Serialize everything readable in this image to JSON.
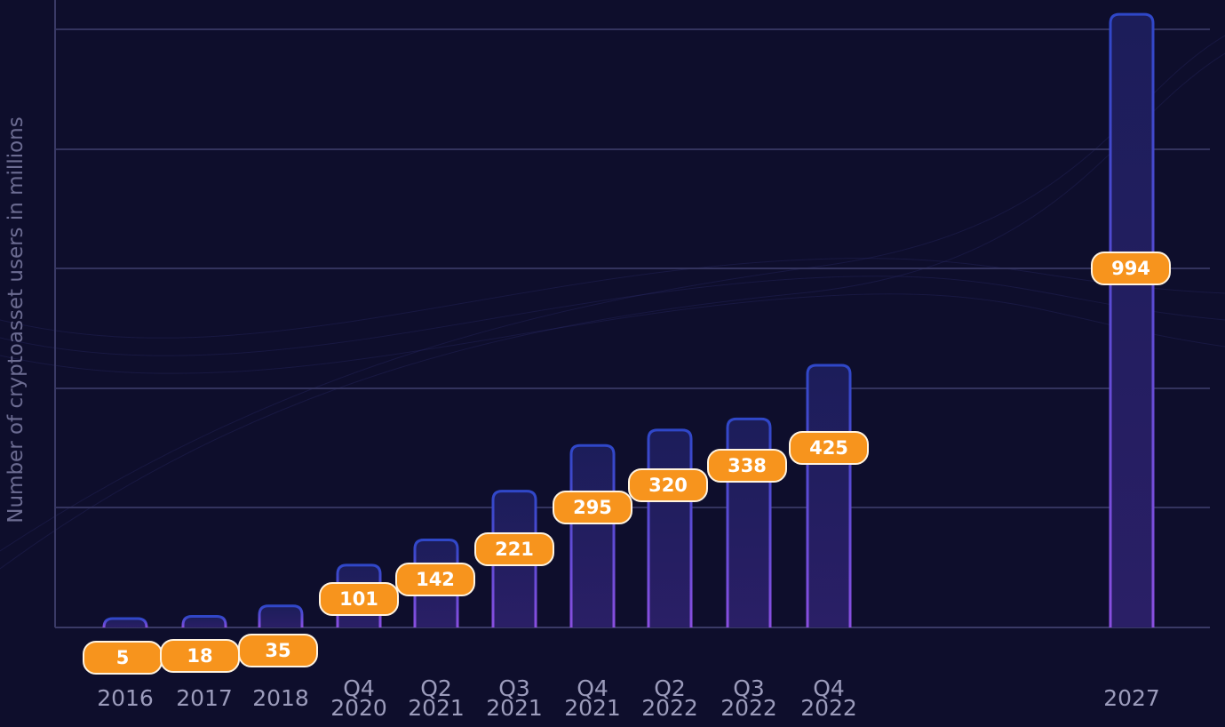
{
  "chart_data": {
    "type": "bar",
    "y_label": "Number of cryptoasset users in millions",
    "categories": [
      "2016",
      "2017",
      "2018",
      "Q4\n2020",
      "Q2\n2021",
      "Q3\n2021",
      "Q4\n2021",
      "Q2\n2022",
      "Q3\n2022",
      "Q4\n2022",
      "2027"
    ],
    "values": [
      5,
      18,
      35,
      101,
      142,
      221,
      295,
      320,
      338,
      425,
      994
    ],
    "ylim": [
      0,
      1000
    ],
    "color": "#2f47c8",
    "label_color": "#f7941d"
  }
}
